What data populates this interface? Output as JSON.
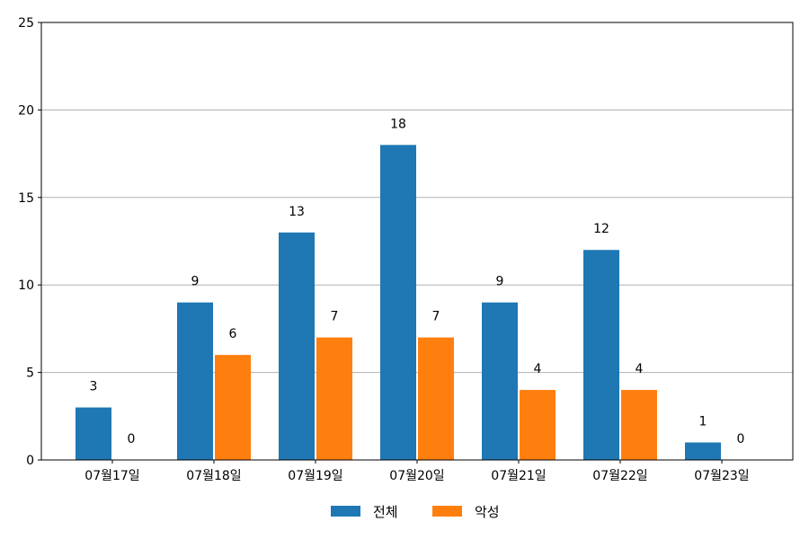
{
  "chart_data": {
    "type": "bar",
    "categories": [
      "07월17일",
      "07월18일",
      "07월19일",
      "07월20일",
      "07월21일",
      "07월22일",
      "07월23일"
    ],
    "series": [
      {
        "name": "전체",
        "values": [
          3,
          9,
          13,
          18,
          9,
          12,
          1
        ],
        "color": "#1f77b4"
      },
      {
        "name": "악성",
        "values": [
          0,
          6,
          7,
          7,
          4,
          4,
          0
        ],
        "color": "#ff7f0e"
      }
    ],
    "ylim": [
      0,
      25
    ],
    "yticks": [
      0,
      5,
      10,
      15,
      20,
      25
    ],
    "grid": "horizontal",
    "legend_position": "bottom-center",
    "data_labels": true,
    "xlabel": "",
    "ylabel": "",
    "title": ""
  }
}
